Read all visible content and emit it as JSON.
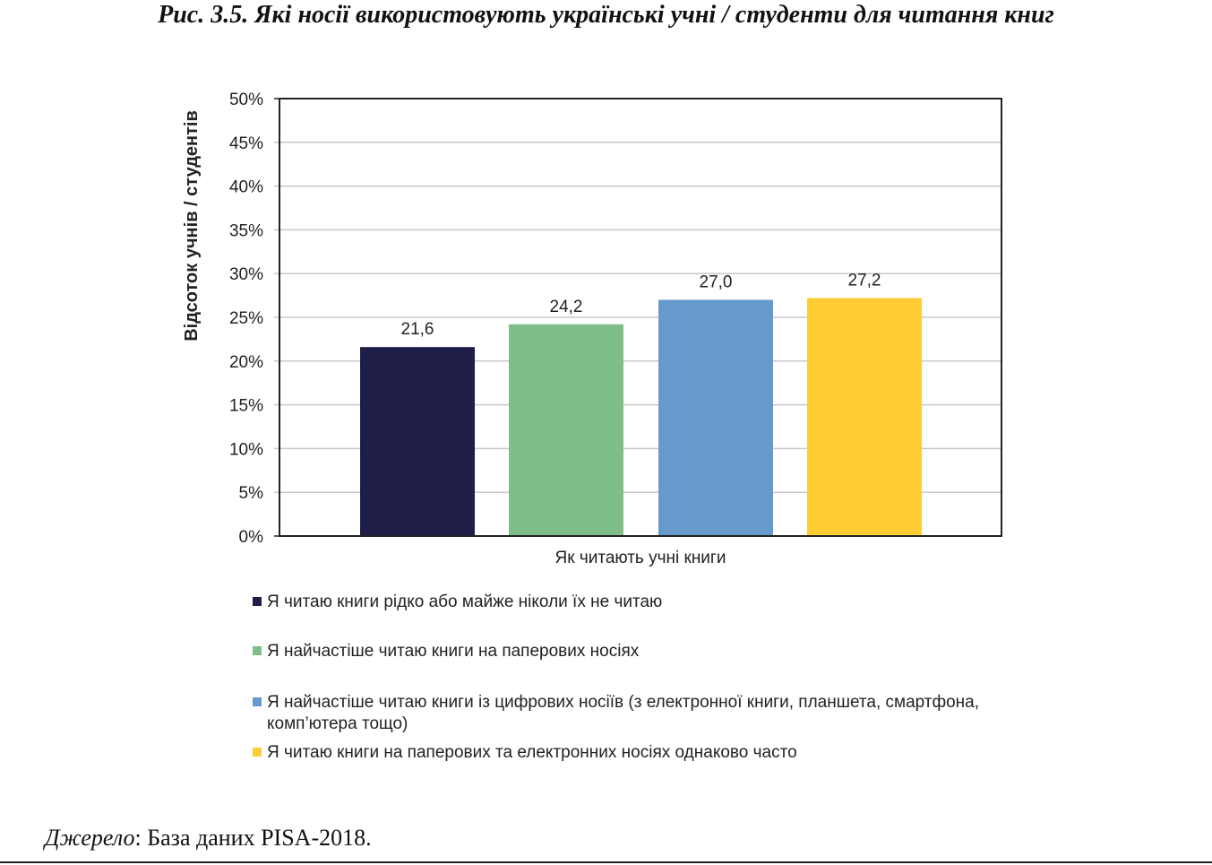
{
  "title": "Рис. 3.5. Які носії використовують українські учні / студенти для читання книг",
  "source": {
    "label": "Джерело",
    "text": ": База даних PISA-2018."
  },
  "chart_data": {
    "type": "bar",
    "title": "Рис. 3.5. Які носії використовують українські учні / студенти для читання книг",
    "xlabel": "Як читають учні книги",
    "ylabel": "Відсоток учнів / студентів",
    "ylim": [
      0,
      50
    ],
    "yticks": [
      "0%",
      "5%",
      "10%",
      "15%",
      "20%",
      "25%",
      "30%",
      "35%",
      "40%",
      "45%",
      "50%"
    ],
    "grid": true,
    "legend_position": "bottom",
    "series": [
      {
        "name": "Я читаю книги рідко або майже ніколи їх не читаю",
        "value": 21.6,
        "label": "21,6",
        "color": "#1e1e48"
      },
      {
        "name": "Я найчастіше читаю книги на паперових носіях",
        "value": 24.2,
        "label": "24,2",
        "color": "#7fbd89"
      },
      {
        "name": "Я найчастіше читаю книги із цифрових носіїв (з електронної книги, планшета, смартфона, комп’ютера тощо)",
        "value": 27.0,
        "label": "27,0",
        "color": "#6699cc"
      },
      {
        "name": "Я читаю книги на паперових та електронних носіях однаково часто",
        "value": 27.2,
        "label": "27,2",
        "color": "#ffcc33"
      }
    ]
  }
}
